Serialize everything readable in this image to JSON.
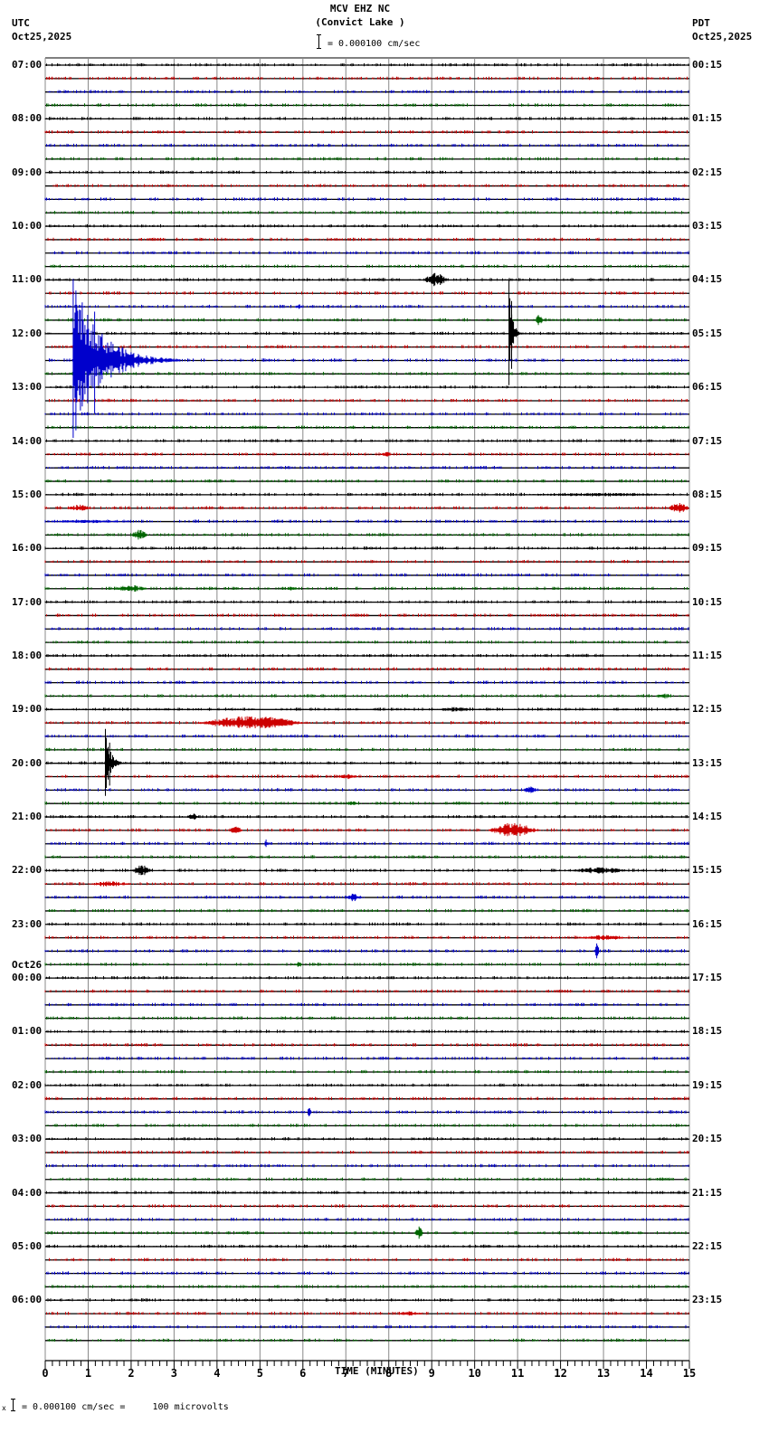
{
  "header": {
    "station": "MCV EHZ NC",
    "location": "(Convict Lake )",
    "left_tz": "UTC",
    "left_date": "Oct25,2025",
    "right_tz": "PDT",
    "right_date": "Oct25,2025",
    "scale_text": "= 0.000100 cm/sec"
  },
  "footer": {
    "scale_text": "= 0.000100 cm/sec =     100 microvolts",
    "prefix": "x"
  },
  "chart_data": {
    "type": "seismogram",
    "title": "MCV EHZ NC (Convict Lake )",
    "xlabel": "TIME (MINUTES)",
    "ylabel": "",
    "xlim": [
      0,
      15
    ],
    "x_ticks": [
      "0",
      "1",
      "2",
      "3",
      "4",
      "5",
      "6",
      "7",
      "8",
      "9",
      "10",
      "11",
      "12",
      "13",
      "14",
      "15"
    ],
    "traces_per_hour": 4,
    "trace_colors": [
      "#000000",
      "#cc0000",
      "#0000cc",
      "#006600"
    ],
    "grid": true,
    "left_labels": [
      {
        "row": 0,
        "text": "07:00"
      },
      {
        "row": 4,
        "text": "08:00"
      },
      {
        "row": 8,
        "text": "09:00"
      },
      {
        "row": 12,
        "text": "10:00"
      },
      {
        "row": 16,
        "text": "11:00"
      },
      {
        "row": 20,
        "text": "12:00"
      },
      {
        "row": 24,
        "text": "13:00"
      },
      {
        "row": 28,
        "text": "14:00"
      },
      {
        "row": 32,
        "text": "15:00"
      },
      {
        "row": 36,
        "text": "16:00"
      },
      {
        "row": 40,
        "text": "17:00"
      },
      {
        "row": 44,
        "text": "18:00"
      },
      {
        "row": 48,
        "text": "19:00"
      },
      {
        "row": 52,
        "text": "20:00"
      },
      {
        "row": 56,
        "text": "21:00"
      },
      {
        "row": 60,
        "text": "22:00"
      },
      {
        "row": 64,
        "text": "23:00"
      },
      {
        "row": 68,
        "text": "00:00",
        "date": "Oct26"
      },
      {
        "row": 72,
        "text": "01:00"
      },
      {
        "row": 76,
        "text": "02:00"
      },
      {
        "row": 80,
        "text": "03:00"
      },
      {
        "row": 84,
        "text": "04:00"
      },
      {
        "row": 88,
        "text": "05:00"
      },
      {
        "row": 92,
        "text": "06:00"
      }
    ],
    "right_labels": [
      {
        "row": 0,
        "text": "00:15"
      },
      {
        "row": 4,
        "text": "01:15"
      },
      {
        "row": 8,
        "text": "02:15"
      },
      {
        "row": 12,
        "text": "03:15"
      },
      {
        "row": 16,
        "text": "04:15"
      },
      {
        "row": 20,
        "text": "05:15"
      },
      {
        "row": 24,
        "text": "06:15"
      },
      {
        "row": 28,
        "text": "07:15"
      },
      {
        "row": 32,
        "text": "08:15"
      },
      {
        "row": 36,
        "text": "09:15"
      },
      {
        "row": 40,
        "text": "10:15"
      },
      {
        "row": 44,
        "text": "11:15"
      },
      {
        "row": 48,
        "text": "12:15"
      },
      {
        "row": 52,
        "text": "13:15"
      },
      {
        "row": 56,
        "text": "14:15"
      },
      {
        "row": 60,
        "text": "15:15"
      },
      {
        "row": 64,
        "text": "16:15"
      },
      {
        "row": 68,
        "text": "17:15"
      },
      {
        "row": 72,
        "text": "18:15"
      },
      {
        "row": 76,
        "text": "19:15"
      },
      {
        "row": 80,
        "text": "20:15"
      },
      {
        "row": 84,
        "text": "21:15"
      },
      {
        "row": 88,
        "text": "22:15"
      },
      {
        "row": 92,
        "text": "23:15"
      }
    ],
    "events": [
      {
        "row": 16,
        "minute": 8.8,
        "duration": 0.6,
        "amp": 8
      },
      {
        "row": 18,
        "minute": 5.8,
        "duration": 0.2,
        "amp": 3
      },
      {
        "row": 19,
        "minute": 11.4,
        "duration": 0.2,
        "amp": 6
      },
      {
        "row": 22,
        "minute": 0.65,
        "duration": 2.5,
        "amp": 90,
        "spike": true
      },
      {
        "row": 20,
        "minute": 10.8,
        "duration": 0.3,
        "amp": 60,
        "spike": true
      },
      {
        "row": 29,
        "minute": 7.8,
        "duration": 0.3,
        "amp": 3
      },
      {
        "row": 32,
        "minute": 10.8,
        "duration": 4.2,
        "amp": 2
      },
      {
        "row": 33,
        "minute": 0.5,
        "duration": 0.6,
        "amp": 4
      },
      {
        "row": 33,
        "minute": 14.5,
        "duration": 0.5,
        "amp": 7
      },
      {
        "row": 34,
        "minute": 0.0,
        "duration": 2.0,
        "amp": 2
      },
      {
        "row": 35,
        "minute": 2.0,
        "duration": 0.4,
        "amp": 6
      },
      {
        "row": 39,
        "minute": 1.6,
        "duration": 0.8,
        "amp": 4
      },
      {
        "row": 39,
        "minute": 5.6,
        "duration": 0.3,
        "amp": 3
      },
      {
        "row": 47,
        "minute": 14.2,
        "duration": 0.4,
        "amp": 3
      },
      {
        "row": 48,
        "minute": 9.1,
        "duration": 0.9,
        "amp": 3
      },
      {
        "row": 49,
        "minute": 3.5,
        "duration": 2.6,
        "amp": 8
      },
      {
        "row": 52,
        "minute": 1.4,
        "duration": 0.5,
        "amp": 38,
        "spike": true
      },
      {
        "row": 53,
        "minute": 6.8,
        "duration": 0.5,
        "amp": 3
      },
      {
        "row": 54,
        "minute": 11.1,
        "duration": 0.4,
        "amp": 4
      },
      {
        "row": 55,
        "minute": 7.0,
        "duration": 0.3,
        "amp": 3
      },
      {
        "row": 56,
        "minute": 3.3,
        "duration": 0.3,
        "amp": 4
      },
      {
        "row": 57,
        "minute": 4.3,
        "duration": 0.3,
        "amp": 6
      },
      {
        "row": 57,
        "minute": 10.3,
        "duration": 1.2,
        "amp": 9
      },
      {
        "row": 58,
        "minute": 5.1,
        "duration": 0.1,
        "amp": 5
      },
      {
        "row": 60,
        "minute": 2.0,
        "duration": 0.5,
        "amp": 6
      },
      {
        "row": 60,
        "minute": 12.2,
        "duration": 1.4,
        "amp": 4
      },
      {
        "row": 61,
        "minute": 1.0,
        "duration": 1.0,
        "amp": 3
      },
      {
        "row": 62,
        "minute": 7.0,
        "duration": 0.4,
        "amp": 5
      },
      {
        "row": 65,
        "minute": 12.4,
        "duration": 1.2,
        "amp": 3
      },
      {
        "row": 66,
        "minute": 12.8,
        "duration": 0.1,
        "amp": 9
      },
      {
        "row": 67,
        "minute": 5.8,
        "duration": 0.2,
        "amp": 3
      },
      {
        "row": 78,
        "minute": 6.1,
        "duration": 0.1,
        "amp": 6
      },
      {
        "row": 87,
        "minute": 8.6,
        "duration": 0.2,
        "amp": 9
      },
      {
        "row": 93,
        "minute": 8.2,
        "duration": 0.6,
        "amp": 3
      }
    ]
  }
}
